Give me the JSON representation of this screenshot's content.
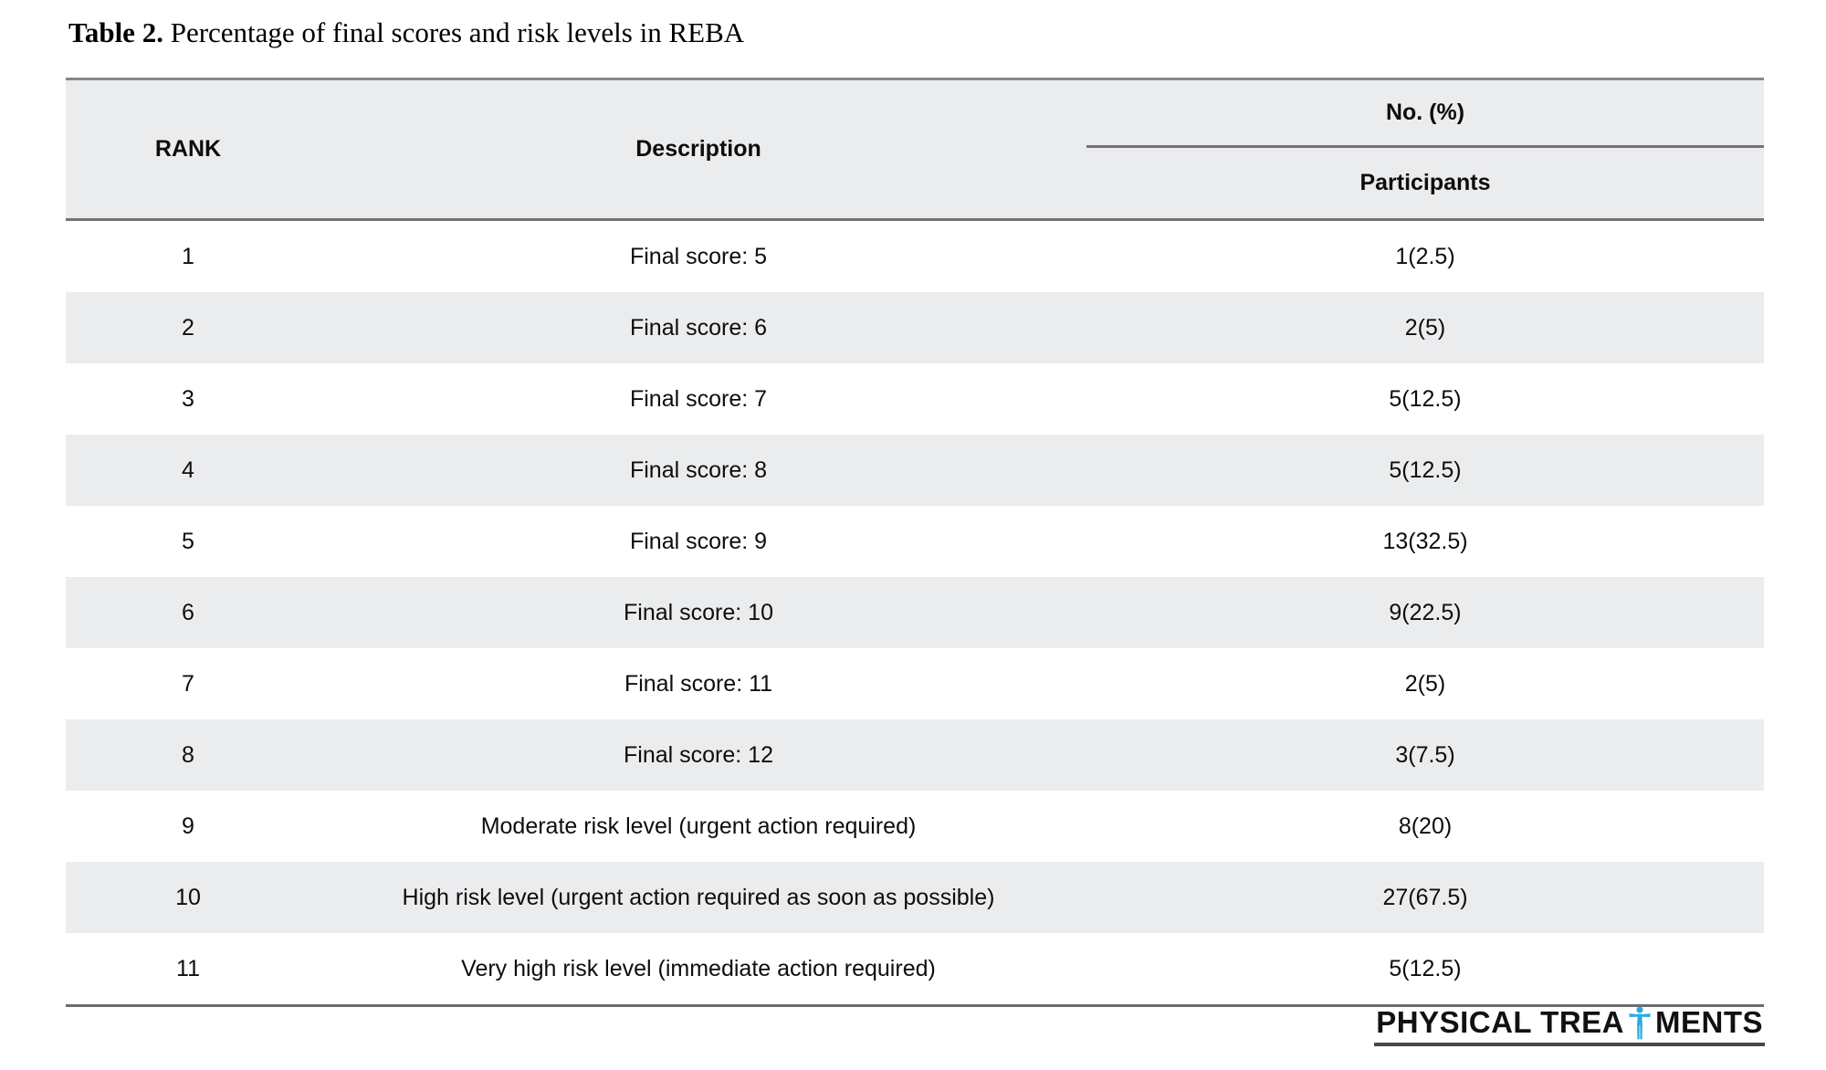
{
  "caption": {
    "label": "Table 2.",
    "text": " Percentage of final scores and risk levels in REBA"
  },
  "table": {
    "header": {
      "rank": "RANK",
      "description": "Description",
      "group": "No. (%)",
      "sub": "Participants"
    },
    "rows": [
      {
        "rank": "1",
        "description": "Final score: 5",
        "participants": "1(2.5)"
      },
      {
        "rank": "2",
        "description": "Final score: 6",
        "participants": "2(5)"
      },
      {
        "rank": "3",
        "description": "Final score: 7",
        "participants": "5(12.5)"
      },
      {
        "rank": "4",
        "description": "Final score: 8",
        "participants": "5(12.5)"
      },
      {
        "rank": "5",
        "description": "Final score: 9",
        "participants": "13(32.5)"
      },
      {
        "rank": "6",
        "description": "Final score: 10",
        "participants": "9(22.5)"
      },
      {
        "rank": "7",
        "description": "Final score: 11",
        "participants": "2(5)"
      },
      {
        "rank": "8",
        "description": "Final score: 12",
        "participants": "3(7.5)"
      },
      {
        "rank": "9",
        "description": "Moderate risk level (urgent action required)",
        "participants": "8(20)"
      },
      {
        "rank": "10",
        "description": "High risk level (urgent action required as soon as possible)",
        "participants": "27(67.5)"
      },
      {
        "rank": "11",
        "description": "Very high risk level (immediate action required)",
        "participants": "5(12.5)"
      }
    ]
  },
  "footer": {
    "logo_left": "PHYSICAL TREA",
    "logo_right": "MENTS",
    "logo_icon": "human-figure-icon"
  },
  "colors": {
    "stripe_gray": "#ebecee",
    "border_gray": "#737376",
    "logo_blue": "#29abe2",
    "text": "#0d0d0d"
  }
}
